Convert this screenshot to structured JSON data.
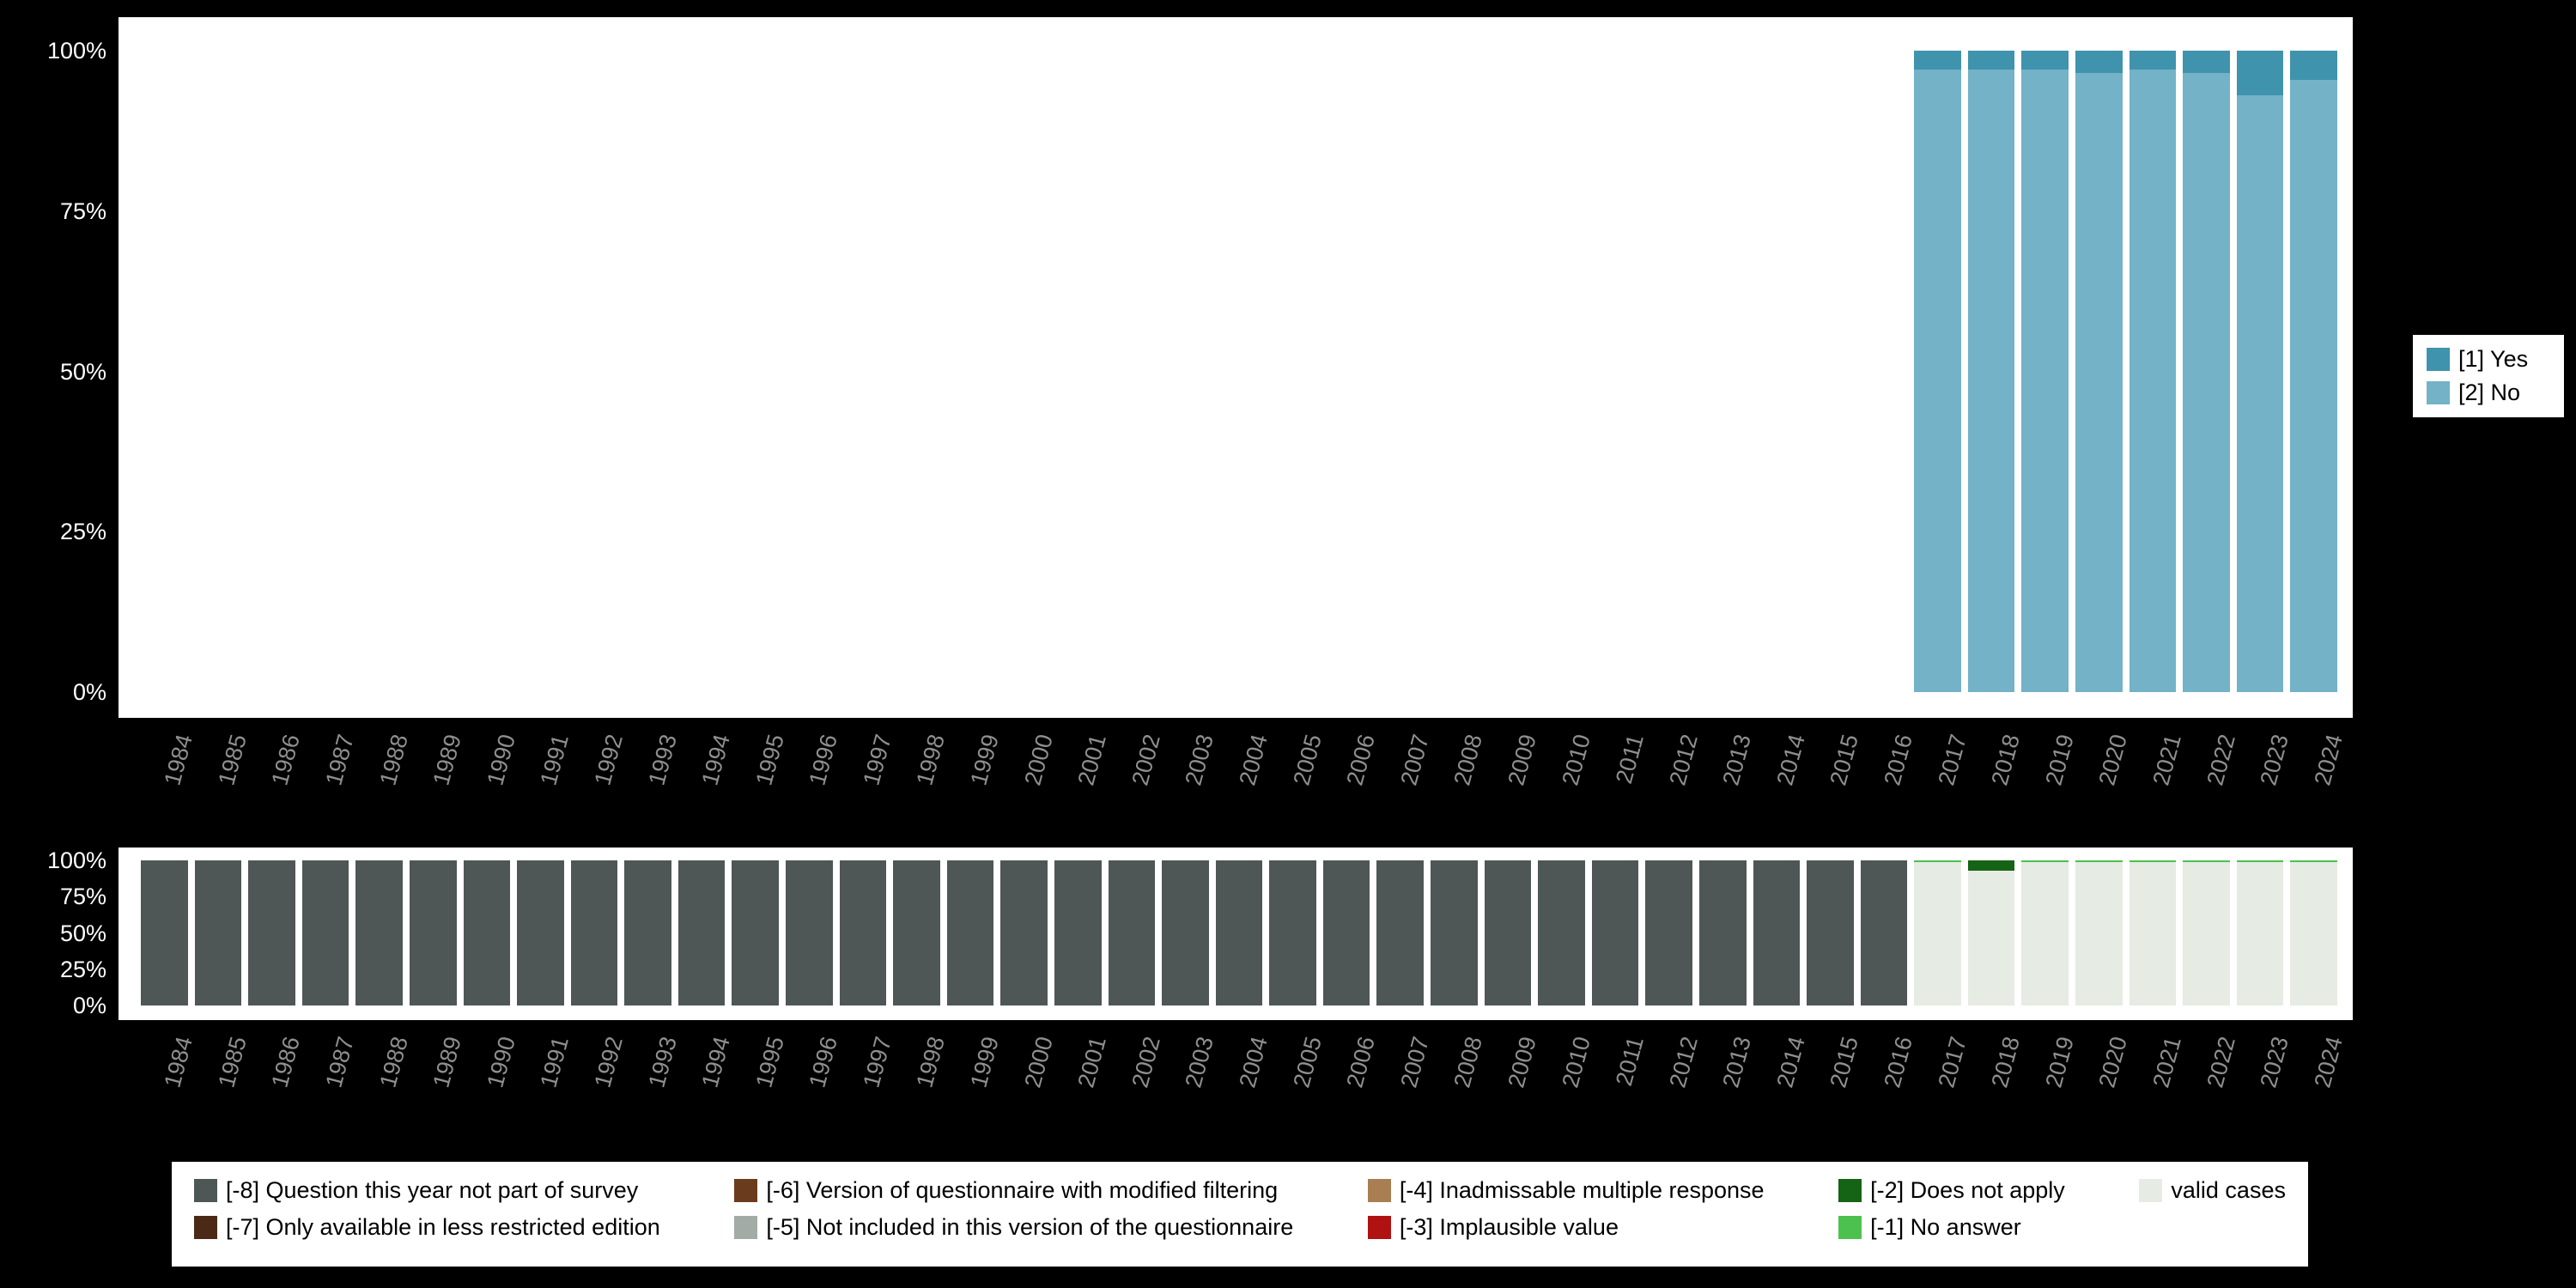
{
  "app": {
    "background_color": "#000000",
    "panel_color": "#ffffff",
    "y_label_color": "#ffffff",
    "x_label_color": "#8f8f8f"
  },
  "axes": {
    "y_tick_labels": [
      "100%",
      "75%",
      "50%",
      "25%",
      "0%"
    ],
    "y_tick_values": [
      100,
      75,
      50,
      25,
      0
    ],
    "x_categories": [
      "1984",
      "1985",
      "1986",
      "1987",
      "1988",
      "1989",
      "1990",
      "1991",
      "1992",
      "1993",
      "1994",
      "1995",
      "1996",
      "1997",
      "1998",
      "1999",
      "2000",
      "2001",
      "2002",
      "2003",
      "2004",
      "2005",
      "2006",
      "2007",
      "2008",
      "2009",
      "2010",
      "2011",
      "2012",
      "2013",
      "2014",
      "2015",
      "2016",
      "2017",
      "2018",
      "2019",
      "2020",
      "2021",
      "2022",
      "2023",
      "2024"
    ]
  },
  "chart_data": [
    {
      "id": "responses",
      "type": "bar",
      "stacked": true,
      "title": "",
      "xlabel": "",
      "ylabel": "",
      "ylim": [
        0,
        100
      ],
      "grid": false,
      "categories": [
        "1984",
        "1985",
        "1986",
        "1987",
        "1988",
        "1989",
        "1990",
        "1991",
        "1992",
        "1993",
        "1994",
        "1995",
        "1996",
        "1997",
        "1998",
        "1999",
        "2000",
        "2001",
        "2002",
        "2003",
        "2004",
        "2005",
        "2006",
        "2007",
        "2008",
        "2009",
        "2010",
        "2011",
        "2012",
        "2013",
        "2014",
        "2015",
        "2016",
        "2017",
        "2018",
        "2019",
        "2020",
        "2021",
        "2022",
        "2023",
        "2024"
      ],
      "series_bottom_up": [
        {
          "name": "[2] No",
          "color": "#73b2c7",
          "values": [
            null,
            null,
            null,
            null,
            null,
            null,
            null,
            null,
            null,
            null,
            null,
            null,
            null,
            null,
            null,
            null,
            null,
            null,
            null,
            null,
            null,
            null,
            null,
            null,
            null,
            null,
            null,
            null,
            null,
            null,
            null,
            null,
            null,
            97,
            97,
            97,
            96.5,
            97,
            96.5,
            93,
            95.5
          ]
        },
        {
          "name": "[1] Yes",
          "color": "#3f93ad",
          "values": [
            null,
            null,
            null,
            null,
            null,
            null,
            null,
            null,
            null,
            null,
            null,
            null,
            null,
            null,
            null,
            null,
            null,
            null,
            null,
            null,
            null,
            null,
            null,
            null,
            null,
            null,
            null,
            null,
            null,
            null,
            null,
            null,
            null,
            3,
            3,
            3,
            3.5,
            3,
            3.5,
            7,
            4.5
          ]
        }
      ],
      "legend": {
        "position": "right",
        "items": [
          {
            "label": "[1] Yes",
            "color": "#3f93ad"
          },
          {
            "label": "[2] No",
            "color": "#73b2c7"
          }
        ]
      }
    },
    {
      "id": "missings",
      "type": "bar",
      "stacked": true,
      "title": "",
      "xlabel": "",
      "ylabel": "",
      "ylim": [
        0,
        100
      ],
      "grid": false,
      "categories": [
        "1984",
        "1985",
        "1986",
        "1987",
        "1988",
        "1989",
        "1990",
        "1991",
        "1992",
        "1993",
        "1994",
        "1995",
        "1996",
        "1997",
        "1998",
        "1999",
        "2000",
        "2001",
        "2002",
        "2003",
        "2004",
        "2005",
        "2006",
        "2007",
        "2008",
        "2009",
        "2010",
        "2011",
        "2012",
        "2013",
        "2014",
        "2015",
        "2016",
        "2017",
        "2018",
        "2019",
        "2020",
        "2021",
        "2022",
        "2023",
        "2024"
      ],
      "series_bottom_up": [
        {
          "name": "valid cases",
          "color": "#e6ebe3",
          "values": [
            0,
            0,
            0,
            0,
            0,
            0,
            0,
            0,
            0,
            0,
            0,
            0,
            0,
            0,
            0,
            0,
            0,
            0,
            0,
            0,
            0,
            0,
            0,
            0,
            0,
            0,
            0,
            0,
            0,
            0,
            0,
            0,
            0,
            99,
            93,
            99,
            99,
            99,
            99,
            99,
            99
          ]
        },
        {
          "name": "[-1] No answer",
          "color": "#4dc14d",
          "values": [
            0,
            0,
            0,
            0,
            0,
            0,
            0,
            0,
            0,
            0,
            0,
            0,
            0,
            0,
            0,
            0,
            0,
            0,
            0,
            0,
            0,
            0,
            0,
            0,
            0,
            0,
            0,
            0,
            0,
            0,
            0,
            0,
            0,
            1,
            0,
            1,
            1,
            1,
            1,
            1,
            1
          ]
        },
        {
          "name": "[-2] Does not apply",
          "color": "#156315",
          "values": [
            0,
            0,
            0,
            0,
            0,
            0,
            0,
            0,
            0,
            0,
            0,
            0,
            0,
            0,
            0,
            0,
            0,
            0,
            0,
            0,
            0,
            0,
            0,
            0,
            0,
            0,
            0,
            0,
            0,
            0,
            0,
            0,
            0,
            0,
            7,
            0,
            0,
            0,
            0,
            0,
            0
          ]
        },
        {
          "name": "[-3] Implausible value",
          "color": "#b01111",
          "values": [
            0,
            0,
            0,
            0,
            0,
            0,
            0,
            0,
            0,
            0,
            0,
            0,
            0,
            0,
            0,
            0,
            0,
            0,
            0,
            0,
            0,
            0,
            0,
            0,
            0,
            0,
            0,
            0,
            0,
            0,
            0,
            0,
            0,
            0,
            0,
            0,
            0,
            0,
            0,
            0,
            0
          ]
        },
        {
          "name": "[-4] Inadmissable multiple response",
          "color": "#a87e52",
          "values": [
            0,
            0,
            0,
            0,
            0,
            0,
            0,
            0,
            0,
            0,
            0,
            0,
            0,
            0,
            0,
            0,
            0,
            0,
            0,
            0,
            0,
            0,
            0,
            0,
            0,
            0,
            0,
            0,
            0,
            0,
            0,
            0,
            0,
            0,
            0,
            0,
            0,
            0,
            0,
            0,
            0
          ]
        },
        {
          "name": "[-5] Not included in this version of the questionnaire",
          "color": "#a2aba5",
          "values": [
            0,
            0,
            0,
            0,
            0,
            0,
            0,
            0,
            0,
            0,
            0,
            0,
            0,
            0,
            0,
            0,
            0,
            0,
            0,
            0,
            0,
            0,
            0,
            0,
            0,
            0,
            0,
            0,
            0,
            0,
            0,
            0,
            0,
            0,
            0,
            0,
            0,
            0,
            0,
            0,
            0
          ]
        },
        {
          "name": "[-6] Version of questionnaire with modified filtering",
          "color": "#6b3b1d",
          "values": [
            0,
            0,
            0,
            0,
            0,
            0,
            0,
            0,
            0,
            0,
            0,
            0,
            0,
            0,
            0,
            0,
            0,
            0,
            0,
            0,
            0,
            0,
            0,
            0,
            0,
            0,
            0,
            0,
            0,
            0,
            0,
            0,
            0,
            0,
            0,
            0,
            0,
            0,
            0,
            0,
            0
          ]
        },
        {
          "name": "[-7] Only available in less restricted edition",
          "color": "#4a2a16",
          "values": [
            0,
            0,
            0,
            0,
            0,
            0,
            0,
            0,
            0,
            0,
            0,
            0,
            0,
            0,
            0,
            0,
            0,
            0,
            0,
            0,
            0,
            0,
            0,
            0,
            0,
            0,
            0,
            0,
            0,
            0,
            0,
            0,
            0,
            0,
            0,
            0,
            0,
            0,
            0,
            0,
            0
          ]
        },
        {
          "name": "[-8] Question this year not part of survey",
          "color": "#4e5756",
          "values": [
            100,
            100,
            100,
            100,
            100,
            100,
            100,
            100,
            100,
            100,
            100,
            100,
            100,
            100,
            100,
            100,
            100,
            100,
            100,
            100,
            100,
            100,
            100,
            100,
            100,
            100,
            100,
            100,
            100,
            100,
            100,
            100,
            100,
            0,
            0,
            0,
            0,
            0,
            0,
            0,
            0
          ]
        }
      ]
    }
  ],
  "legend_missing": {
    "columns": [
      [
        {
          "label": "[-8] Question this year not part of survey",
          "color": "#4e5756"
        },
        {
          "label": "[-7] Only available in less restricted edition",
          "color": "#4a2a16"
        }
      ],
      [
        {
          "label": "[-6] Version of questionnaire with modified filtering",
          "color": "#6b3b1d"
        },
        {
          "label": "[-5] Not included in this version of the questionnaire",
          "color": "#a2aba5"
        }
      ],
      [
        {
          "label": "[-4] Inadmissable multiple response",
          "color": "#a87e52"
        },
        {
          "label": "[-3] Implausible value",
          "color": "#b01111"
        }
      ],
      [
        {
          "label": "[-2] Does not apply",
          "color": "#156315"
        },
        {
          "label": "[-1] No answer",
          "color": "#4dc14d"
        }
      ],
      [
        {
          "label": "valid cases",
          "color": "#e6ebe3"
        }
      ]
    ]
  }
}
